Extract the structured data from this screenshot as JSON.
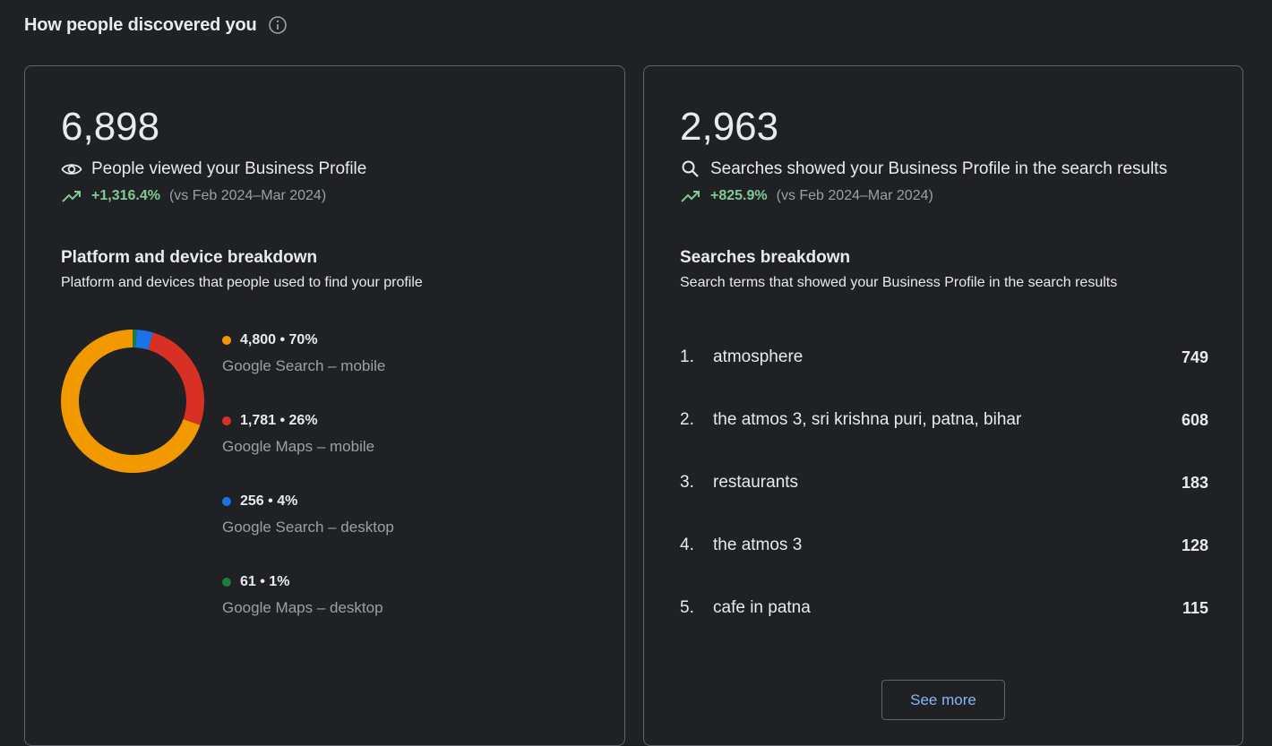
{
  "header": {
    "title": "How people discovered you"
  },
  "views": {
    "total": "6,898",
    "label": "People viewed your Business Profile",
    "change_pct": "+1,316.4%",
    "change_vs": "(vs Feb 2024–Mar 2024)",
    "breakdown_title": "Platform and device breakdown",
    "breakdown_subtitle": "Platform and devices that people used to find your profile"
  },
  "chart_data": {
    "type": "pie",
    "categories": [
      "Google Search – mobile",
      "Google Maps – mobile",
      "Google Search – desktop",
      "Google Maps – desktop"
    ],
    "values": [
      4800,
      1781,
      256,
      61
    ],
    "colors": [
      "#f29900",
      "#d93025",
      "#1a73e8",
      "#188038"
    ]
  },
  "legend": [
    {
      "value": "4,800 • 70%",
      "label": "Google Search – mobile",
      "color": "#f29900"
    },
    {
      "value": "1,781 • 26%",
      "label": "Google Maps – mobile",
      "color": "#d93025"
    },
    {
      "value": "256 • 4%",
      "label": "Google Search – desktop",
      "color": "#1a73e8"
    },
    {
      "value": "61 • 1%",
      "label": "Google Maps – desktop",
      "color": "#188038"
    }
  ],
  "searches": {
    "total": "2,963",
    "label": "Searches showed your Business Profile in the search results",
    "change_pct": "+825.9%",
    "change_vs": "(vs Feb 2024–Mar 2024)",
    "breakdown_title": "Searches breakdown",
    "breakdown_subtitle": "Search terms that showed your Business Profile in the search results",
    "items": [
      {
        "rank": "1.",
        "term": "atmosphere",
        "count": "749"
      },
      {
        "rank": "2.",
        "term": "the atmos 3, sri krishna puri, patna, bihar",
        "count": "608"
      },
      {
        "rank": "3.",
        "term": "restaurants",
        "count": "183"
      },
      {
        "rank": "4.",
        "term": "the atmos 3",
        "count": "128"
      },
      {
        "rank": "5.",
        "term": "cafe in patna",
        "count": "115"
      }
    ],
    "see_more_label": "See more"
  }
}
